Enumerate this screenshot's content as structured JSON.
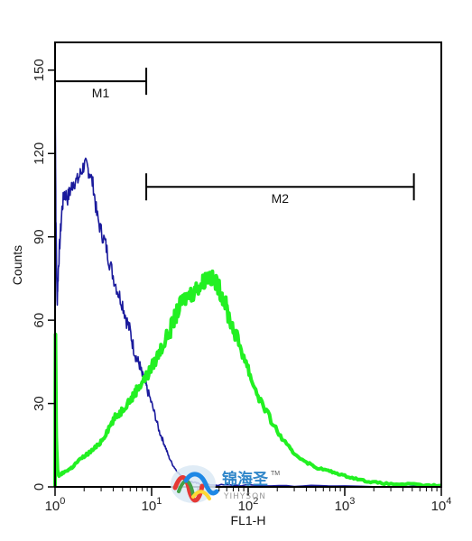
{
  "chart_data": {
    "type": "line",
    "xlabel": "FL1-H",
    "ylabel": "Counts",
    "x_scale": "log",
    "xlim": [
      1,
      10000
    ],
    "ylim": [
      0,
      160
    ],
    "x_ticks": [
      {
        "value": 1,
        "base": "10",
        "exp": "0"
      },
      {
        "value": 10,
        "base": "10",
        "exp": "1"
      },
      {
        "value": 100,
        "base": "10",
        "exp": "2"
      },
      {
        "value": 1000,
        "base": "10",
        "exp": "3"
      },
      {
        "value": 10000,
        "base": "10",
        "exp": "4"
      }
    ],
    "y_ticks": [
      0,
      30,
      60,
      90,
      120,
      150
    ],
    "grid": false,
    "series": [
      {
        "color": "#1a1a9c",
        "x": [
          1.0,
          1.02,
          1.05,
          1.08,
          1.12,
          1.18,
          1.25,
          1.35,
          1.45,
          1.55,
          1.7,
          1.85,
          2.0,
          2.15,
          2.3,
          2.5,
          2.7,
          3.0,
          3.3,
          3.6,
          4.0,
          4.5,
          5.0,
          5.5,
          6.0,
          6.5,
          7.0,
          7.5,
          8.0,
          8.5,
          9.0,
          10.0,
          11.0,
          12.0,
          13.0,
          14.0,
          15.0,
          16.5,
          18.0,
          20.0,
          22.0,
          25.0,
          28.0,
          32.0,
          40.0,
          60.0,
          100.0,
          300.0,
          1000.0,
          10000.0
        ],
        "y": [
          150,
          98,
          66,
          78,
          88,
          100,
          106,
          104,
          107,
          110,
          110,
          113,
          116,
          115,
          113,
          108,
          98,
          92,
          88,
          82,
          76,
          70,
          66,
          60,
          56,
          50,
          46,
          44,
          40,
          38,
          35,
          30,
          25,
          20,
          17,
          14,
          11,
          8,
          6,
          4,
          3,
          2,
          1.5,
          1,
          0.8,
          0.6,
          0.5,
          0.4,
          0.3,
          0.2
        ]
      },
      {
        "color": "#22f022",
        "x": [
          1.0,
          1.01,
          1.03,
          1.06,
          1.1,
          1.2,
          1.35,
          1.5,
          1.7,
          2.0,
          2.4,
          2.8,
          3.2,
          3.7,
          4.2,
          4.8,
          5.5,
          6.3,
          7.0,
          8.0,
          9.0,
          10.0,
          11.5,
          13.0,
          15.0,
          17.0,
          19.0,
          21.0,
          24.0,
          27.0,
          30.0,
          33.0,
          36.0,
          40.0,
          44.0,
          48.0,
          52.0,
          57.0,
          62.0,
          70.0,
          80.0,
          95.0,
          110.0,
          130.0,
          160.0,
          200.0,
          250.0,
          300.0,
          400.0,
          500.0,
          650.0,
          800.0,
          1000.0,
          1300.0,
          1700.0,
          2200.0,
          3000.0,
          4500.0,
          7000.0,
          10000.0
        ],
        "y": [
          0,
          55,
          18,
          6,
          4,
          5,
          6,
          7,
          9,
          11,
          13,
          15,
          18,
          22,
          25,
          27,
          30,
          32,
          35,
          38,
          40,
          43,
          47,
          51,
          55,
          60,
          64,
          67,
          69,
          70,
          72,
          73,
          75,
          76,
          74,
          73,
          70,
          67,
          62,
          57,
          52,
          45,
          38,
          32,
          26,
          20,
          15,
          12,
          9,
          7,
          6,
          5,
          4,
          3,
          2,
          1.5,
          1,
          1,
          0.5,
          0.5
        ]
      }
    ],
    "annotations": [
      {
        "label": "M1",
        "x_start": 1,
        "x_end": 8.8,
        "y": 146
      },
      {
        "label": "M2",
        "x_start": 8.8,
        "x_end": 5200,
        "y": 108
      }
    ]
  },
  "watermark": {
    "text_cn": "锦海圣",
    "text_en": "YIHYSON",
    "trademark": "TM"
  }
}
